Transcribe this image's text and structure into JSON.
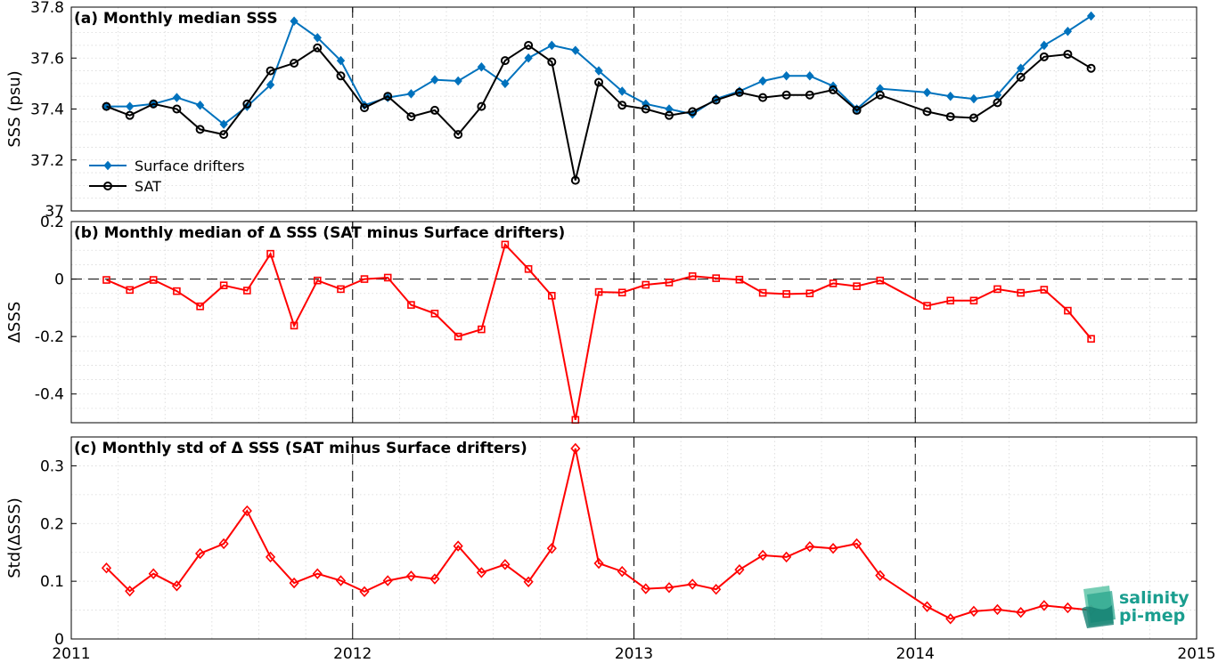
{
  "chart_data": [
    {
      "type": "line",
      "title": "(a) Monthly median SSS",
      "ylabel": "SSS (psu)",
      "ylim": [
        37.0,
        37.8
      ],
      "yticks": [
        37,
        37.2,
        37.4,
        37.6,
        37.8
      ],
      "ytick_labels": [
        "37",
        "37.2",
        "37.4",
        "37.6",
        "37.8"
      ],
      "xlim": [
        2011,
        2015
      ],
      "xtick_labels": [
        "2011",
        "2012",
        "2013",
        "2014",
        "2015"
      ],
      "grid": true,
      "legend": "lower-left",
      "x": [
        2011.125,
        2011.208,
        2011.292,
        2011.375,
        2011.458,
        2011.542,
        2011.625,
        2011.708,
        2011.792,
        2011.875,
        2011.958,
        2012.042,
        2012.125,
        2012.208,
        2012.292,
        2012.375,
        2012.458,
        2012.542,
        2012.625,
        2012.708,
        2012.792,
        2012.875,
        2012.958,
        2013.042,
        2013.125,
        2013.208,
        2013.292,
        2013.375,
        2013.458,
        2013.542,
        2013.625,
        2013.708,
        2013.792,
        2013.875,
        2014.042,
        2014.125,
        2014.208,
        2014.292,
        2014.375,
        2014.458,
        2014.542,
        2014.625
      ],
      "series": [
        {
          "name": "Surface drifters",
          "color": "#0072BD",
          "marker": "diamond-filled",
          "values": [
            37.41,
            37.41,
            37.42,
            37.445,
            37.415,
            37.34,
            37.41,
            37.495,
            37.745,
            37.68,
            37.59,
            37.415,
            37.445,
            37.46,
            37.515,
            37.51,
            37.565,
            37.5,
            37.6,
            37.65,
            37.63,
            37.55,
            37.47,
            37.42,
            37.4,
            37.38,
            37.44,
            37.47,
            37.51,
            37.53,
            37.53,
            37.49,
            37.4,
            37.48,
            37.465,
            37.45,
            37.44,
            37.455,
            37.56,
            37.65,
            37.705,
            37.765
          ]
        },
        {
          "name": "SAT",
          "color": "#000000",
          "marker": "circle-open",
          "values": [
            37.41,
            37.375,
            37.42,
            37.4,
            37.32,
            37.3,
            37.42,
            37.55,
            37.58,
            37.64,
            37.53,
            37.405,
            37.45,
            37.37,
            37.395,
            37.3,
            37.41,
            37.59,
            37.65,
            37.585,
            37.12,
            37.505,
            37.415,
            37.4,
            37.375,
            37.39,
            37.435,
            37.465,
            37.445,
            37.455,
            37.455,
            37.475,
            37.395,
            37.455,
            37.39,
            37.37,
            37.365,
            37.425,
            37.525,
            37.605,
            37.615,
            37.56
          ]
        }
      ]
    },
    {
      "type": "line",
      "title": "(b) Monthly median of Δ SSS (SAT minus Surface drifters)",
      "ylabel": "ΔSSS",
      "ylim": [
        -0.5,
        0.2
      ],
      "yticks": [
        -0.4,
        -0.2,
        0,
        0.2
      ],
      "ytick_labels": [
        "-0.4",
        "-0.2",
        "0",
        "0.2"
      ],
      "xlim": [
        2011,
        2015
      ],
      "grid": true,
      "x": [
        2011.125,
        2011.208,
        2011.292,
        2011.375,
        2011.458,
        2011.542,
        2011.625,
        2011.708,
        2011.792,
        2011.875,
        2011.958,
        2012.042,
        2012.125,
        2012.208,
        2012.292,
        2012.375,
        2012.458,
        2012.542,
        2012.625,
        2012.708,
        2012.792,
        2012.875,
        2012.958,
        2013.042,
        2013.125,
        2013.208,
        2013.292,
        2013.375,
        2013.458,
        2013.542,
        2013.625,
        2013.708,
        2013.792,
        2013.875,
        2014.042,
        2014.125,
        2014.208,
        2014.292,
        2014.375,
        2014.458,
        2014.542,
        2014.625
      ],
      "series": [
        {
          "color": "#ff0000",
          "marker": "square-open",
          "values": [
            -0.003,
            -0.038,
            -0.003,
            -0.042,
            -0.095,
            -0.022,
            -0.04,
            0.088,
            -0.162,
            -0.005,
            -0.035,
            0.0,
            0.005,
            -0.09,
            -0.12,
            -0.2,
            -0.175,
            0.12,
            0.035,
            -0.058,
            -0.49,
            -0.045,
            -0.047,
            -0.02,
            -0.012,
            0.01,
            0.003,
            -0.002,
            -0.048,
            -0.052,
            -0.05,
            -0.015,
            -0.025,
            -0.005,
            -0.093,
            -0.075,
            -0.075,
            -0.035,
            -0.048,
            -0.037,
            -0.11,
            -0.208
          ]
        }
      ]
    },
    {
      "type": "line",
      "title": "(c) Monthly std of Δ SSS (SAT minus Surface drifters)",
      "ylabel": "Std(ΔSSS)",
      "ylim": [
        0,
        0.35
      ],
      "yticks": [
        0,
        0.1,
        0.2,
        0.3
      ],
      "ytick_labels": [
        "0",
        "0.1",
        "0.2",
        "0.3"
      ],
      "xlim": [
        2011,
        2015
      ],
      "xtick_labels": [
        "2011",
        "2012",
        "2013",
        "2014",
        "2015"
      ],
      "grid": true,
      "x": [
        2011.125,
        2011.208,
        2011.292,
        2011.375,
        2011.458,
        2011.542,
        2011.625,
        2011.708,
        2011.792,
        2011.875,
        2011.958,
        2012.042,
        2012.125,
        2012.208,
        2012.292,
        2012.375,
        2012.458,
        2012.542,
        2012.625,
        2012.708,
        2012.792,
        2012.875,
        2012.958,
        2013.042,
        2013.125,
        2013.208,
        2013.292,
        2013.375,
        2013.458,
        2013.542,
        2013.625,
        2013.708,
        2013.792,
        2013.875,
        2014.042,
        2014.125,
        2014.208,
        2014.292,
        2014.375,
        2014.458,
        2014.542,
        2014.625
      ],
      "series": [
        {
          "color": "#ff0000",
          "marker": "diamond-open",
          "values": [
            0.123,
            0.083,
            0.113,
            0.092,
            0.148,
            0.165,
            0.222,
            0.142,
            0.097,
            0.113,
            0.101,
            0.082,
            0.101,
            0.109,
            0.104,
            0.161,
            0.115,
            0.129,
            0.099,
            0.157,
            0.33,
            0.131,
            0.117,
            0.087,
            0.089,
            0.095,
            0.086,
            0.12,
            0.145,
            0.142,
            0.16,
            0.157,
            0.165,
            0.11,
            0.056,
            0.035,
            0.048,
            0.051,
            0.046,
            0.058,
            0.054,
            0.05
          ]
        }
      ]
    }
  ],
  "logo": {
    "line1": "salinity",
    "line2": "pi-mep"
  }
}
